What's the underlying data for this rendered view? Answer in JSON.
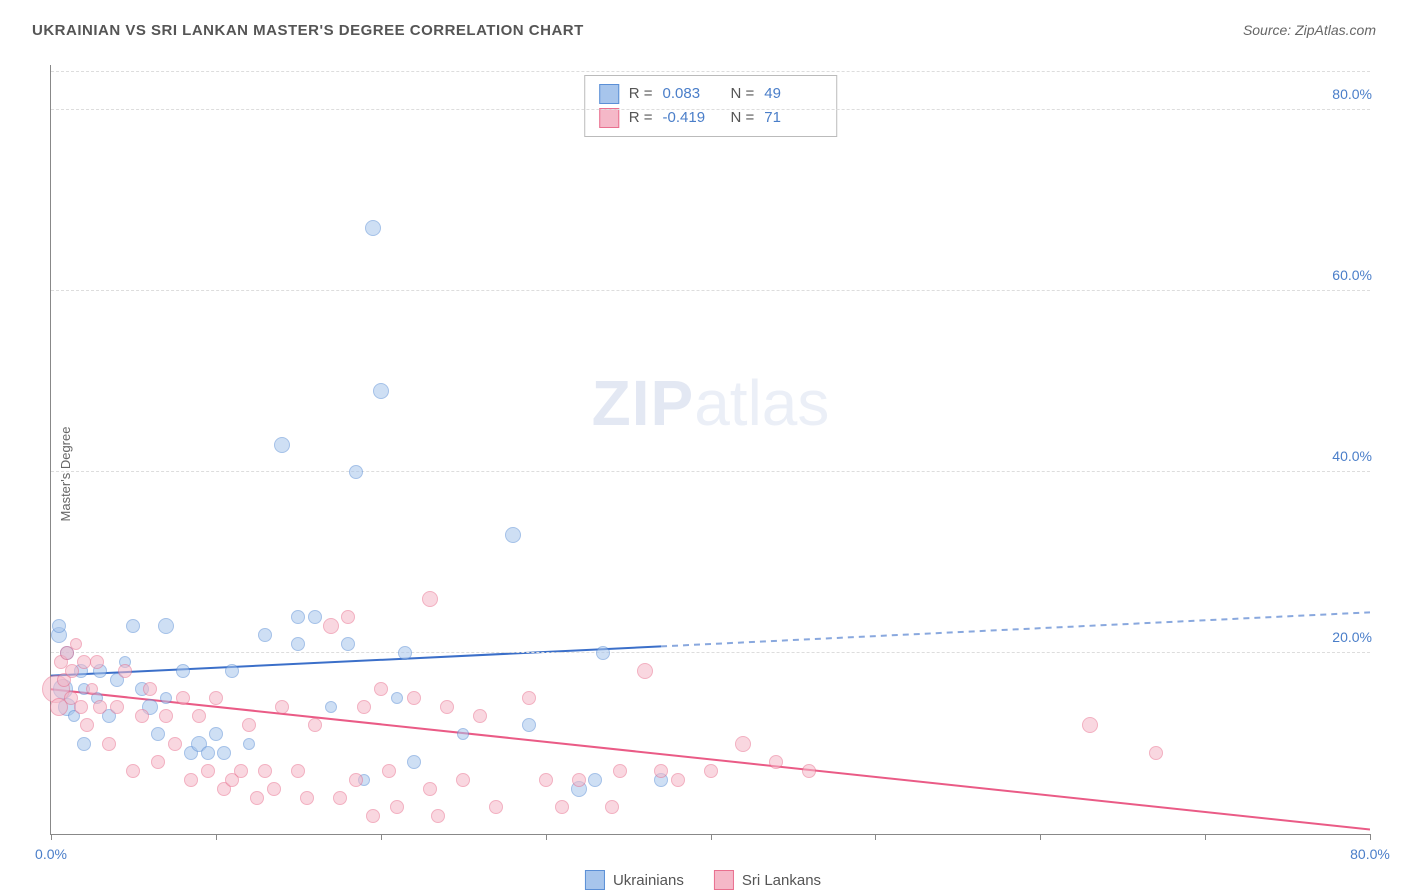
{
  "title": "UKRAINIAN VS SRI LANKAN MASTER'S DEGREE CORRELATION CHART",
  "source": "Source: ZipAtlas.com",
  "ylabel": "Master's Degree",
  "watermark": {
    "bold": "ZIP",
    "rest": "atlas"
  },
  "chart": {
    "type": "scatter",
    "background_color": "#ffffff",
    "grid_color": "#dddddd",
    "axis_color": "#888888",
    "tick_color": "#4a7ec9",
    "xlim": [
      0,
      80
    ],
    "ylim": [
      0,
      85
    ],
    "xticks": [
      0,
      10,
      20,
      30,
      40,
      50,
      60,
      70,
      80
    ],
    "xtick_labels": {
      "0": "0.0%",
      "80": "80.0%"
    },
    "yticks": [
      20,
      40,
      60,
      80
    ],
    "ytick_labels": {
      "20": "20.0%",
      "40": "40.0%",
      "60": "60.0%",
      "80": "80.0%"
    },
    "point_opacity": 0.55,
    "point_border_opacity": 0.9
  },
  "series": [
    {
      "name": "Ukrainians",
      "color_fill": "#a7c5ec",
      "color_stroke": "#5b8fd6",
      "R": "0.083",
      "N": "49",
      "regression": {
        "x1": 0,
        "y1": 17.5,
        "x2": 80,
        "y2": 24.5,
        "solid_until_x": 37,
        "line_color": "#3b6fc9",
        "line_width": 2
      },
      "points": [
        {
          "x": 0.5,
          "y": 22,
          "r": 8
        },
        {
          "x": 0.5,
          "y": 23,
          "r": 7
        },
        {
          "x": 0.7,
          "y": 16,
          "r": 10
        },
        {
          "x": 1,
          "y": 20,
          "r": 7
        },
        {
          "x": 1,
          "y": 14,
          "r": 9
        },
        {
          "x": 1.4,
          "y": 13,
          "r": 6
        },
        {
          "x": 1.8,
          "y": 18,
          "r": 7
        },
        {
          "x": 2,
          "y": 16,
          "r": 6
        },
        {
          "x": 2,
          "y": 10,
          "r": 7
        },
        {
          "x": 2.8,
          "y": 15,
          "r": 6
        },
        {
          "x": 3,
          "y": 18,
          "r": 7
        },
        {
          "x": 3.5,
          "y": 13,
          "r": 7
        },
        {
          "x": 4,
          "y": 17,
          "r": 7
        },
        {
          "x": 4.5,
          "y": 19,
          "r": 6
        },
        {
          "x": 5,
          "y": 23,
          "r": 7
        },
        {
          "x": 5.5,
          "y": 16,
          "r": 7
        },
        {
          "x": 6,
          "y": 14,
          "r": 8
        },
        {
          "x": 6.5,
          "y": 11,
          "r": 7
        },
        {
          "x": 7,
          "y": 23,
          "r": 8
        },
        {
          "x": 7,
          "y": 15,
          "r": 6
        },
        {
          "x": 8,
          "y": 18,
          "r": 7
        },
        {
          "x": 8.5,
          "y": 9,
          "r": 7
        },
        {
          "x": 9,
          "y": 10,
          "r": 8
        },
        {
          "x": 9.5,
          "y": 9,
          "r": 7
        },
        {
          "x": 10,
          "y": 11,
          "r": 7
        },
        {
          "x": 10.5,
          "y": 9,
          "r": 7
        },
        {
          "x": 11,
          "y": 18,
          "r": 7
        },
        {
          "x": 12,
          "y": 10,
          "r": 6
        },
        {
          "x": 13,
          "y": 22,
          "r": 7
        },
        {
          "x": 14,
          "y": 43,
          "r": 8
        },
        {
          "x": 15,
          "y": 21,
          "r": 7
        },
        {
          "x": 15,
          "y": 24,
          "r": 7
        },
        {
          "x": 16,
          "y": 24,
          "r": 7
        },
        {
          "x": 17,
          "y": 14,
          "r": 6
        },
        {
          "x": 18,
          "y": 21,
          "r": 7
        },
        {
          "x": 18.5,
          "y": 40,
          "r": 7
        },
        {
          "x": 19,
          "y": 6,
          "r": 6
        },
        {
          "x": 19.5,
          "y": 67,
          "r": 8
        },
        {
          "x": 20,
          "y": 49,
          "r": 8
        },
        {
          "x": 21,
          "y": 15,
          "r": 6
        },
        {
          "x": 21.5,
          "y": 20,
          "r": 7
        },
        {
          "x": 22,
          "y": 8,
          "r": 7
        },
        {
          "x": 25,
          "y": 11,
          "r": 6
        },
        {
          "x": 28,
          "y": 33,
          "r": 8
        },
        {
          "x": 29,
          "y": 12,
          "r": 7
        },
        {
          "x": 32,
          "y": 5,
          "r": 8
        },
        {
          "x": 33,
          "y": 6,
          "r": 7
        },
        {
          "x": 33.5,
          "y": 20,
          "r": 7
        },
        {
          "x": 37,
          "y": 6,
          "r": 7
        }
      ]
    },
    {
      "name": "Sri Lankans",
      "color_fill": "#f5b8c8",
      "color_stroke": "#e9708f",
      "R": "-0.419",
      "N": "71",
      "regression": {
        "x1": 0,
        "y1": 16,
        "x2": 80,
        "y2": 0.5,
        "solid_until_x": 80,
        "line_color": "#ea5b86",
        "line_width": 2
      },
      "points": [
        {
          "x": 0.3,
          "y": 16,
          "r": 14
        },
        {
          "x": 0.5,
          "y": 14,
          "r": 9
        },
        {
          "x": 0.6,
          "y": 19,
          "r": 7
        },
        {
          "x": 0.8,
          "y": 17,
          "r": 7
        },
        {
          "x": 1,
          "y": 20,
          "r": 7
        },
        {
          "x": 1.2,
          "y": 15,
          "r": 7
        },
        {
          "x": 1.3,
          "y": 18,
          "r": 7
        },
        {
          "x": 1.5,
          "y": 21,
          "r": 6
        },
        {
          "x": 1.8,
          "y": 14,
          "r": 7
        },
        {
          "x": 2,
          "y": 19,
          "r": 7
        },
        {
          "x": 2.2,
          "y": 12,
          "r": 7
        },
        {
          "x": 2.5,
          "y": 16,
          "r": 6
        },
        {
          "x": 2.8,
          "y": 19,
          "r": 7
        },
        {
          "x": 3,
          "y": 14,
          "r": 7
        },
        {
          "x": 3.5,
          "y": 10,
          "r": 7
        },
        {
          "x": 4,
          "y": 14,
          "r": 7
        },
        {
          "x": 4.5,
          "y": 18,
          "r": 7
        },
        {
          "x": 5,
          "y": 7,
          "r": 7
        },
        {
          "x": 5.5,
          "y": 13,
          "r": 7
        },
        {
          "x": 6,
          "y": 16,
          "r": 7
        },
        {
          "x": 6.5,
          "y": 8,
          "r": 7
        },
        {
          "x": 7,
          "y": 13,
          "r": 7
        },
        {
          "x": 7.5,
          "y": 10,
          "r": 7
        },
        {
          "x": 8,
          "y": 15,
          "r": 7
        },
        {
          "x": 8.5,
          "y": 6,
          "r": 7
        },
        {
          "x": 9,
          "y": 13,
          "r": 7
        },
        {
          "x": 9.5,
          "y": 7,
          "r": 7
        },
        {
          "x": 10,
          "y": 15,
          "r": 7
        },
        {
          "x": 10.5,
          "y": 5,
          "r": 7
        },
        {
          "x": 11,
          "y": 6,
          "r": 7
        },
        {
          "x": 11.5,
          "y": 7,
          "r": 7
        },
        {
          "x": 12,
          "y": 12,
          "r": 7
        },
        {
          "x": 12.5,
          "y": 4,
          "r": 7
        },
        {
          "x": 13,
          "y": 7,
          "r": 7
        },
        {
          "x": 13.5,
          "y": 5,
          "r": 7
        },
        {
          "x": 14,
          "y": 14,
          "r": 7
        },
        {
          "x": 15,
          "y": 7,
          "r": 7
        },
        {
          "x": 15.5,
          "y": 4,
          "r": 7
        },
        {
          "x": 16,
          "y": 12,
          "r": 7
        },
        {
          "x": 17,
          "y": 23,
          "r": 8
        },
        {
          "x": 17.5,
          "y": 4,
          "r": 7
        },
        {
          "x": 18,
          "y": 24,
          "r": 7
        },
        {
          "x": 18.5,
          "y": 6,
          "r": 7
        },
        {
          "x": 19,
          "y": 14,
          "r": 7
        },
        {
          "x": 19.5,
          "y": 2,
          "r": 7
        },
        {
          "x": 20,
          "y": 16,
          "r": 7
        },
        {
          "x": 20.5,
          "y": 7,
          "r": 7
        },
        {
          "x": 21,
          "y": 3,
          "r": 7
        },
        {
          "x": 22,
          "y": 15,
          "r": 7
        },
        {
          "x": 23,
          "y": 5,
          "r": 7
        },
        {
          "x": 23,
          "y": 26,
          "r": 8
        },
        {
          "x": 23.5,
          "y": 2,
          "r": 7
        },
        {
          "x": 24,
          "y": 14,
          "r": 7
        },
        {
          "x": 25,
          "y": 6,
          "r": 7
        },
        {
          "x": 26,
          "y": 13,
          "r": 7
        },
        {
          "x": 27,
          "y": 3,
          "r": 7
        },
        {
          "x": 29,
          "y": 15,
          "r": 7
        },
        {
          "x": 30,
          "y": 6,
          "r": 7
        },
        {
          "x": 31,
          "y": 3,
          "r": 7
        },
        {
          "x": 32,
          "y": 6,
          "r": 7
        },
        {
          "x": 34,
          "y": 3,
          "r": 7
        },
        {
          "x": 34.5,
          "y": 7,
          "r": 7
        },
        {
          "x": 36,
          "y": 18,
          "r": 8
        },
        {
          "x": 37,
          "y": 7,
          "r": 7
        },
        {
          "x": 38,
          "y": 6,
          "r": 7
        },
        {
          "x": 40,
          "y": 7,
          "r": 7
        },
        {
          "x": 42,
          "y": 10,
          "r": 8
        },
        {
          "x": 44,
          "y": 8,
          "r": 7
        },
        {
          "x": 46,
          "y": 7,
          "r": 7
        },
        {
          "x": 63,
          "y": 12,
          "r": 8
        },
        {
          "x": 67,
          "y": 9,
          "r": 7
        }
      ]
    }
  ],
  "corr_legend_labels": {
    "R": "R =",
    "N": "N ="
  },
  "series_legend": [
    {
      "swatch_fill": "#a7c5ec",
      "swatch_stroke": "#5b8fd6",
      "label": "Ukrainians"
    },
    {
      "swatch_fill": "#f5b8c8",
      "swatch_stroke": "#e9708f",
      "label": "Sri Lankans"
    }
  ]
}
